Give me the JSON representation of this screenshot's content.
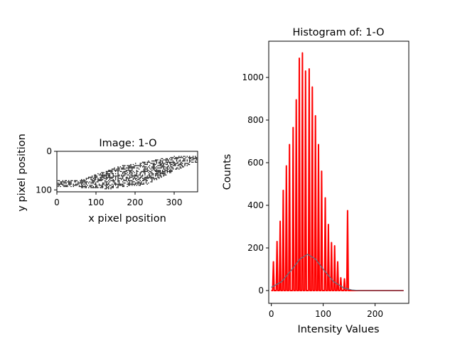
{
  "chart_data": [
    {
      "type": "image",
      "title": "Image: 1-O",
      "xlabel": "x pixel position",
      "ylabel": "y pixel position",
      "xlim": [
        0,
        360
      ],
      "ylim": [
        105,
        0
      ],
      "xticks": [
        "0",
        "100",
        "200",
        "300"
      ],
      "yticks": [
        "0",
        "100"
      ]
    },
    {
      "type": "line",
      "title": "Histogram of: 1-O",
      "xlabel": "Intensity Values",
      "ylabel": "Counts",
      "xlim": [
        -5,
        265
      ],
      "ylim": [
        -60,
        1170
      ],
      "xticks": [
        "0",
        "100",
        "200"
      ],
      "yticks": [
        "0",
        "200",
        "400",
        "600",
        "800",
        "1000"
      ],
      "series": [
        {
          "color": "#ff0000",
          "x": [
            4,
            11,
            17,
            23,
            29,
            35,
            42,
            48,
            54,
            60,
            66,
            73,
            79,
            85,
            91,
            97,
            104,
            110,
            116,
            122,
            128,
            134,
            141,
            147
          ],
          "y": [
            135,
            230,
            325,
            470,
            585,
            685,
            765,
            895,
            1090,
            1115,
            1030,
            1040,
            955,
            820,
            685,
            560,
            435,
            310,
            225,
            210,
            135,
            60,
            55,
            375
          ]
        },
        {
          "color": "#607080",
          "x": [
            0,
            20,
            40,
            55,
            70,
            85,
            100,
            120,
            140,
            155,
            170,
            200,
            255
          ],
          "y": [
            15,
            42,
            100,
            148,
            170,
            148,
            100,
            42,
            12,
            3,
            0,
            0,
            0
          ]
        }
      ]
    }
  ]
}
